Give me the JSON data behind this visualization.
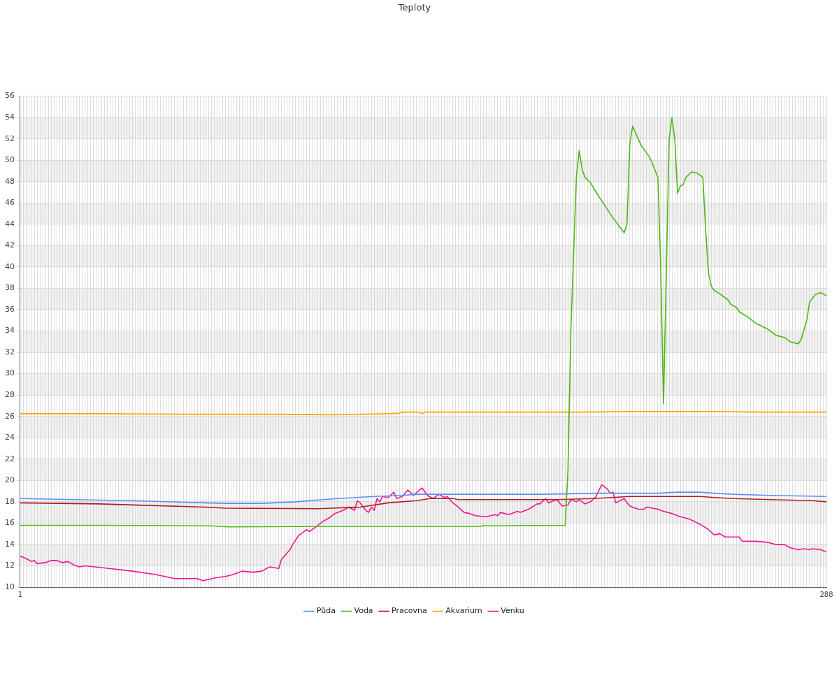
{
  "chart_data": {
    "type": "line",
    "title": "Teploty",
    "xlim": [
      1,
      288
    ],
    "xticks": [
      1,
      {
        "value": 2,
        "label": null
      },
      {
        "value": 3,
        "label": null
      },
      {
        "value": 4,
        "label": null
      },
      {
        "value": 5,
        "label": null
      },
      {
        "value": 6,
        "label": null
      },
      {
        "value": 7,
        "label": null
      },
      {
        "value": 8,
        "label": null
      },
      {
        "value": 9,
        "label": null
      },
      {
        "value": 10,
        "label": null
      },
      {
        "value": 11,
        "label": null
      },
      {
        "value": 12,
        "label": null
      },
      {
        "value": 13,
        "label": null
      },
      {
        "value": 14,
        "label": null
      },
      {
        "value": 15,
        "label": null
      },
      {
        "value": 16,
        "label": null
      },
      {
        "value": 17,
        "label": null
      },
      {
        "value": 18,
        "label": null
      },
      {
        "value": 19,
        "label": null
      },
      {
        "value": 20,
        "label": null
      },
      {
        "value": 21,
        "label": null
      },
      {
        "value": 22,
        "label": null
      },
      {
        "value": 23,
        "label": null
      },
      {
        "value": 24,
        "label": null
      },
      {
        "value": 25,
        "label": null
      },
      {
        "value": 26,
        "label": null
      },
      {
        "value": 27,
        "label": null
      },
      {
        "value": 28,
        "label": null
      },
      {
        "value": 29,
        "label": null
      },
      {
        "value": 30,
        "label": null
      },
      {
        "value": 31,
        "label": null
      },
      {
        "value": 32,
        "label": null
      },
      {
        "value": 33,
        "label": null
      },
      {
        "value": 34,
        "label": null
      },
      {
        "value": 35,
        "label": null
      },
      {
        "value": 36,
        "label": null
      },
      {
        "value": 37,
        "label": null
      },
      {
        "value": 38,
        "label": null
      },
      {
        "value": 39,
        "label": null
      },
      {
        "value": 40,
        "label": null
      },
      {
        "value": 41,
        "label": null
      },
      {
        "value": 42,
        "label": null
      },
      {
        "value": 43,
        "label": null
      },
      {
        "value": 44,
        "label": null
      },
      {
        "value": 45,
        "label": null
      },
      {
        "value": 46,
        "label": null
      },
      {
        "value": 47,
        "label": null
      },
      {
        "value": 48,
        "label": null
      },
      {
        "value": 49,
        "label": null
      },
      {
        "value": 50,
        "label": null
      },
      {
        "value": 51,
        "label": null
      },
      {
        "value": 52,
        "label": null
      },
      {
        "value": 53,
        "label": null
      },
      {
        "value": 54,
        "label": null
      },
      {
        "value": 55,
        "label": null
      },
      {
        "value": 56,
        "label": null
      },
      {
        "value": 57,
        "label": null
      },
      {
        "value": 58,
        "label": null
      },
      {
        "value": 59,
        "label": null
      },
      {
        "value": 60,
        "label": null
      },
      {
        "value": 61,
        "label": null
      },
      {
        "value": 62,
        "label": null
      },
      {
        "value": 63,
        "label": null
      },
      {
        "value": 64,
        "label": null
      },
      {
        "value": 65,
        "label": null
      },
      {
        "value": 66,
        "label": null
      },
      {
        "value": 67,
        "label": null
      },
      {
        "value": 68,
        "label": null
      },
      {
        "value": 69,
        "label": null
      },
      {
        "value": 70,
        "label": null
      },
      {
        "value": 71,
        "label": null
      },
      {
        "value": 72,
        "label": null
      },
      {
        "value": 73,
        "label": null
      },
      {
        "value": 74,
        "label": null
      },
      {
        "value": 75,
        "label": null
      },
      {
        "value": 76,
        "label": null
      },
      {
        "value": 77,
        "label": null
      },
      {
        "value": 78,
        "label": null
      },
      {
        "value": 79,
        "label": null
      },
      {
        "value": 80,
        "label": null
      },
      {
        "value": 81,
        "label": null
      },
      {
        "value": 82,
        "label": null
      },
      {
        "value": 83,
        "label": null
      },
      {
        "value": 84,
        "label": null
      },
      {
        "value": 85,
        "label": null
      },
      {
        "value": 86,
        "label": null
      },
      {
        "value": 87,
        "label": null
      },
      {
        "value": 88,
        "label": null
      },
      {
        "value": 89,
        "label": null
      },
      {
        "value": 90,
        "label": null
      },
      {
        "value": 91,
        "label": null
      },
      {
        "value": 92,
        "label": null
      },
      {
        "value": 93,
        "label": null
      },
      {
        "value": 94,
        "label": null
      },
      {
        "value": 95,
        "label": null
      },
      {
        "value": 96,
        "label": null
      },
      {
        "value": 97,
        "label": null
      },
      {
        "value": 98,
        "label": null
      },
      {
        "value": 99,
        "label": null
      },
      {
        "value": 100,
        "label": null
      },
      {
        "value": 101,
        "label": null
      },
      {
        "value": 102,
        "label": null
      },
      {
        "value": 103,
        "label": null
      },
      {
        "value": 104,
        "label": null
      },
      {
        "value": 105,
        "label": null
      },
      {
        "value": 106,
        "label": null
      },
      {
        "value": 107,
        "label": null
      },
      {
        "value": 108,
        "label": null
      },
      {
        "value": 109,
        "label": null
      },
      {
        "value": 110,
        "label": null
      },
      {
        "value": 111,
        "label": null
      },
      {
        "value": 112,
        "label": null
      },
      {
        "value": 113,
        "label": null
      },
      {
        "value": 114,
        "label": null
      },
      {
        "value": 115,
        "label": null
      },
      {
        "value": 116,
        "label": null
      },
      {
        "value": 117,
        "label": null
      },
      {
        "value": 118,
        "label": null
      },
      {
        "value": 119,
        "label": null
      },
      {
        "value": 120,
        "label": null
      },
      {
        "value": 121,
        "label": null
      },
      {
        "value": 122,
        "label": null
      },
      {
        "value": 123,
        "label": null
      },
      {
        "value": 124,
        "label": null
      },
      {
        "value": 125,
        "label": null
      },
      {
        "value": 126,
        "label": null
      },
      {
        "value": 127,
        "label": null
      },
      {
        "value": 128,
        "label": null
      },
      {
        "value": 129,
        "label": null
      },
      {
        "value": 130,
        "label": null
      },
      {
        "value": 131,
        "label": null
      },
      {
        "value": 132,
        "label": null
      },
      {
        "value": 133,
        "label": null
      },
      {
        "value": 134,
        "label": null
      },
      {
        "value": 135,
        "label": null
      },
      {
        "value": 136,
        "label": null
      },
      {
        "value": 137,
        "label": null
      },
      {
        "value": 138,
        "label": null
      },
      {
        "value": 139,
        "label": null
      },
      {
        "value": 140,
        "label": null
      },
      {
        "value": 141,
        "label": null
      },
      {
        "value": 142,
        "label": null
      },
      {
        "value": 143,
        "label": null
      },
      {
        "value": 144,
        "label": null
      },
      {
        "value": 145,
        "label": null
      },
      {
        "value": 146,
        "label": null
      },
      {
        "value": 147,
        "label": null
      },
      {
        "value": 148,
        "label": null
      },
      {
        "value": 149,
        "label": null
      },
      {
        "value": 150,
        "label": null
      },
      {
        "value": 151,
        "label": null
      },
      {
        "value": 152,
        "label": null
      },
      {
        "value": 153,
        "label": null
      },
      {
        "value": 154,
        "label": null
      },
      {
        "value": 155,
        "label": null
      },
      {
        "value": 156,
        "label": null
      },
      {
        "value": 157,
        "label": null
      },
      {
        "value": 158,
        "label": null
      },
      {
        "value": 159,
        "label": null
      },
      {
        "value": 160,
        "label": null
      },
      {
        "value": 161,
        "label": null
      },
      {
        "value": 162,
        "label": null
      },
      {
        "value": 163,
        "label": null
      },
      {
        "value": 164,
        "label": null
      },
      {
        "value": 165,
        "label": null
      },
      {
        "value": 166,
        "label": null
      },
      {
        "value": 167,
        "label": null
      },
      {
        "value": 168,
        "label": null
      },
      {
        "value": 169,
        "label": null
      },
      {
        "value": 170,
        "label": null
      },
      {
        "value": 171,
        "label": null
      },
      {
        "value": 172,
        "label": null
      },
      {
        "value": 173,
        "label": null
      },
      {
        "value": 174,
        "label": null
      },
      {
        "value": 175,
        "label": null
      },
      {
        "value": 176,
        "label": null
      },
      {
        "value": 177,
        "label": null
      },
      {
        "value": 178,
        "label": null
      },
      {
        "value": 179,
        "label": null
      },
      {
        "value": 180,
        "label": null
      },
      {
        "value": 181,
        "label": null
      },
      {
        "value": 182,
        "label": null
      },
      {
        "value": 183,
        "label": null
      },
      {
        "value": 184,
        "label": null
      },
      {
        "value": 185,
        "label": null
      },
      {
        "value": 186,
        "label": null
      },
      {
        "value": 187,
        "label": null
      },
      {
        "value": 188,
        "label": null
      },
      {
        "value": 189,
        "label": null
      },
      {
        "value": 190,
        "label": null
      },
      {
        "value": 191,
        "label": null
      },
      {
        "value": 192,
        "label": null
      },
      {
        "value": 193,
        "label": null
      },
      {
        "value": 194,
        "label": null
      },
      {
        "value": 195,
        "label": null
      },
      {
        "value": 196,
        "label": null
      },
      {
        "value": 197,
        "label": null
      },
      {
        "value": 198,
        "label": null
      },
      {
        "value": 199,
        "label": null
      },
      {
        "value": 200,
        "label": null
      },
      {
        "value": 201,
        "label": null
      },
      {
        "value": 202,
        "label": null
      },
      {
        "value": 203,
        "label": null
      },
      {
        "value": 204,
        "label": null
      },
      {
        "value": 205,
        "label": null
      },
      {
        "value": 206,
        "label": null
      },
      {
        "value": 207,
        "label": null
      },
      {
        "value": 208,
        "label": null
      },
      {
        "value": 209,
        "label": null
      },
      {
        "value": 210,
        "label": null
      },
      {
        "value": 211,
        "label": null
      },
      {
        "value": 212,
        "label": null
      },
      {
        "value": 213,
        "label": null
      },
      {
        "value": 214,
        "label": null
      },
      {
        "value": 215,
        "label": null
      },
      {
        "value": 216,
        "label": null
      },
      {
        "value": 217,
        "label": null
      },
      {
        "value": 218,
        "label": null
      },
      {
        "value": 219,
        "label": null
      },
      {
        "value": 220,
        "label": null
      },
      {
        "value": 221,
        "label": null
      },
      {
        "value": 222,
        "label": null
      },
      {
        "value": 223,
        "label": null
      },
      {
        "value": 224,
        "label": null
      },
      {
        "value": 225,
        "label": null
      },
      {
        "value": 226,
        "label": null
      },
      {
        "value": 227,
        "label": null
      },
      {
        "value": 228,
        "label": null
      },
      {
        "value": 229,
        "label": null
      },
      {
        "value": 230,
        "label": null
      },
      {
        "value": 231,
        "label": null
      },
      {
        "value": 232,
        "label": null
      },
      {
        "value": 233,
        "label": null
      },
      {
        "value": 234,
        "label": null
      },
      {
        "value": 235,
        "label": null
      },
      {
        "value": 236,
        "label": null
      },
      {
        "value": 237,
        "label": null
      },
      {
        "value": 238,
        "label": null
      },
      {
        "value": 239,
        "label": null
      },
      {
        "value": 240,
        "label": null
      },
      {
        "value": 241,
        "label": null
      },
      {
        "value": 242,
        "label": null
      },
      {
        "value": 243,
        "label": null
      },
      {
        "value": 244,
        "label": null
      },
      {
        "value": 245,
        "label": null
      },
      {
        "value": 246,
        "label": null
      },
      {
        "value": 247,
        "label": null
      },
      {
        "value": 248,
        "label": null
      },
      {
        "value": 249,
        "label": null
      },
      {
        "value": 250,
        "label": null
      },
      {
        "value": 251,
        "label": null
      },
      {
        "value": 252,
        "label": null
      },
      {
        "value": 253,
        "label": null
      },
      {
        "value": 254,
        "label": null
      },
      {
        "value": 255,
        "label": null
      },
      {
        "value": 256,
        "label": null
      },
      {
        "value": 257,
        "label": null
      },
      {
        "value": 258,
        "label": null
      },
      {
        "value": 259,
        "label": null
      },
      {
        "value": 260,
        "label": null
      },
      {
        "value": 261,
        "label": null
      },
      {
        "value": 262,
        "label": null
      },
      {
        "value": 263,
        "label": null
      },
      {
        "value": 264,
        "label": null
      },
      {
        "value": 265,
        "label": null
      },
      {
        "value": 266,
        "label": null
      },
      {
        "value": 267,
        "label": null
      },
      {
        "value": 268,
        "label": null
      },
      {
        "value": 269,
        "label": null
      },
      {
        "value": 270,
        "label": null
      },
      {
        "value": 271,
        "label": null
      },
      {
        "value": 272,
        "label": null
      },
      {
        "value": 273,
        "label": null
      },
      {
        "value": 274,
        "label": null
      },
      {
        "value": 275,
        "label": null
      },
      {
        "value": 276,
        "label": null
      },
      {
        "value": 277,
        "label": null
      },
      {
        "value": 278,
        "label": null
      },
      {
        "value": 279,
        "label": null
      },
      {
        "value": 280,
        "label": null
      },
      {
        "value": 281,
        "label": null
      },
      {
        "value": 282,
        "label": null
      },
      {
        "value": 283,
        "label": null
      },
      {
        "value": 284,
        "label": null
      },
      {
        "value": 285,
        "label": null
      },
      {
        "value": 286,
        "label": null
      },
      {
        "value": 287,
        "label": null
      },
      288
    ],
    "ylim": [
      10,
      56
    ],
    "yticks": [
      10,
      12,
      14,
      16,
      18,
      20,
      22,
      24,
      26,
      28,
      30,
      32,
      34,
      36,
      38,
      40,
      42,
      44,
      46,
      48,
      50,
      52,
      54,
      56
    ],
    "grid": true,
    "legend": "bottom",
    "marker": "none",
    "line_style": "solid",
    "series": [
      {
        "name": "Půda",
        "color": "#5b8ff0",
        "x": [
          1,
          20,
          40,
          67,
          74,
          87,
          99,
          114,
          127,
          137,
          142,
          155,
          187,
          207,
          228,
          235,
          243,
          248,
          255,
          268,
          288
        ],
        "values": [
          18.3,
          18.2,
          18.1,
          17.9,
          17.85,
          17.85,
          18.0,
          18.3,
          18.5,
          18.6,
          18.7,
          18.7,
          18.7,
          18.8,
          18.8,
          18.9,
          18.9,
          18.8,
          18.7,
          18.6,
          18.5
        ]
      },
      {
        "name": "Voda",
        "color": "#4cb812",
        "x": [
          1,
          30,
          69,
          75,
          112,
          165,
          166,
          167,
          195,
          196,
          197,
          199,
          200,
          201,
          202,
          204,
          206,
          209,
          212,
          216,
          217,
          218,
          219,
          220,
          222,
          225,
          226,
          228,
          229,
          230,
          232,
          233,
          234,
          235,
          236,
          237,
          238,
          240,
          242,
          244,
          245,
          246,
          247,
          248,
          250,
          253,
          254,
          256,
          257,
          260,
          263,
          267,
          270,
          273,
          275,
          278,
          279,
          281,
          282,
          284,
          286,
          288
        ],
        "values": [
          15.8,
          15.8,
          15.75,
          15.65,
          15.7,
          15.7,
          15.8,
          15.75,
          15.8,
          21,
          34,
          48.5,
          50.9,
          49.2,
          48.4,
          47.9,
          47.0,
          45.8,
          44.6,
          43.2,
          44.0,
          51.5,
          53.2,
          52.6,
          51.4,
          50.3,
          49.7,
          48.4,
          40,
          27.2,
          51.9,
          54.0,
          52.0,
          46.9,
          47.6,
          47.7,
          48.4,
          48.9,
          48.8,
          48.4,
          43.5,
          39.5,
          38.2,
          37.8,
          37.5,
          36.9,
          36.5,
          36.2,
          35.8,
          35.3,
          34.7,
          34.2,
          33.6,
          33.4,
          33.0,
          32.8,
          33.2,
          35.0,
          36.7,
          37.4,
          37.6,
          37.3
        ]
      },
      {
        "name": "Pracovna",
        "color": "#b01c1c",
        "x": [
          1,
          29,
          41,
          54,
          67,
          74,
          107,
          112,
          122,
          132,
          142,
          147,
          155,
          157,
          192,
          205,
          218,
          243,
          248,
          255,
          268,
          283,
          288
        ],
        "values": [
          17.9,
          17.8,
          17.7,
          17.6,
          17.5,
          17.4,
          17.35,
          17.4,
          17.5,
          17.9,
          18.1,
          18.3,
          18.3,
          18.2,
          18.2,
          18.3,
          18.5,
          18.5,
          18.4,
          18.3,
          18.2,
          18.1,
          18.0
        ]
      },
      {
        "name": "Akvarium",
        "color": "#ffa500",
        "x": [
          1,
          30,
          60,
          90,
          112,
          132,
          136,
          137,
          143,
          144,
          145,
          200,
          218,
          250,
          265,
          288
        ],
        "values": [
          26.25,
          26.25,
          26.2,
          26.2,
          26.15,
          26.25,
          26.3,
          26.4,
          26.4,
          26.25,
          26.4,
          26.4,
          26.45,
          26.45,
          26.4,
          26.4
        ]
      },
      {
        "name": "Venku",
        "color": "#f0168f",
        "x": [
          1,
          3,
          5,
          6,
          7,
          10,
          12,
          14,
          16,
          18,
          20,
          22,
          24,
          31,
          41,
          49,
          56,
          64,
          66,
          71,
          74,
          77,
          80,
          84,
          87,
          89,
          90,
          93,
          94,
          97,
          98,
          100,
          103,
          104,
          107,
          109,
          111,
          113,
          116,
          118,
          120,
          121,
          122,
          124,
          125,
          126,
          127,
          128,
          129,
          130,
          132,
          134,
          135,
          137,
          139,
          141,
          144,
          146,
          148,
          150,
          152,
          153,
          155,
          157,
          159,
          161,
          163,
          167,
          170,
          171,
          172,
          175,
          178,
          179,
          182,
          185,
          186,
          188,
          189,
          191,
          192,
          194,
          196,
          197,
          199,
          200,
          202,
          204,
          206,
          208,
          210,
          211,
          212,
          213,
          216,
          217,
          218,
          221,
          223,
          224,
          228,
          230,
          233,
          236,
          239,
          243,
          246,
          248,
          250,
          252,
          257,
          258,
          263,
          267,
          270,
          273,
          275,
          278,
          280,
          282,
          283,
          286,
          288
        ],
        "values": [
          12.9,
          12.7,
          12.4,
          12.5,
          12.2,
          12.3,
          12.5,
          12.5,
          12.3,
          12.4,
          12.1,
          11.9,
          12.0,
          11.8,
          11.5,
          11.2,
          10.8,
          10.8,
          10.6,
          10.9,
          11.0,
          11.2,
          11.5,
          11.4,
          11.5,
          11.8,
          11.9,
          11.75,
          12.6,
          13.5,
          14.0,
          14.8,
          15.4,
          15.2,
          15.8,
          16.2,
          16.5,
          16.9,
          17.2,
          17.5,
          17.2,
          18.1,
          17.9,
          17.2,
          17.0,
          17.5,
          17.2,
          18.3,
          18.0,
          18.5,
          18.4,
          18.9,
          18.3,
          18.5,
          19.1,
          18.6,
          19.3,
          18.6,
          18.3,
          18.7,
          18.4,
          18.5,
          17.9,
          17.5,
          17.0,
          16.9,
          16.7,
          16.6,
          16.8,
          16.7,
          17.0,
          16.8,
          17.1,
          17.0,
          17.3,
          17.8,
          17.8,
          18.3,
          17.9,
          18.1,
          18.2,
          17.6,
          17.7,
          18.2,
          18.0,
          18.2,
          17.8,
          18.0,
          18.5,
          19.6,
          19.2,
          18.8,
          18.9,
          17.9,
          18.3,
          17.9,
          17.6,
          17.3,
          17.3,
          17.5,
          17.3,
          17.1,
          16.9,
          16.6,
          16.4,
          15.9,
          15.4,
          14.9,
          15.0,
          14.7,
          14.7,
          14.3,
          14.3,
          14.2,
          14.0,
          14.0,
          13.7,
          13.5,
          13.6,
          13.5,
          13.6,
          13.5,
          13.3
        ]
      }
    ]
  }
}
